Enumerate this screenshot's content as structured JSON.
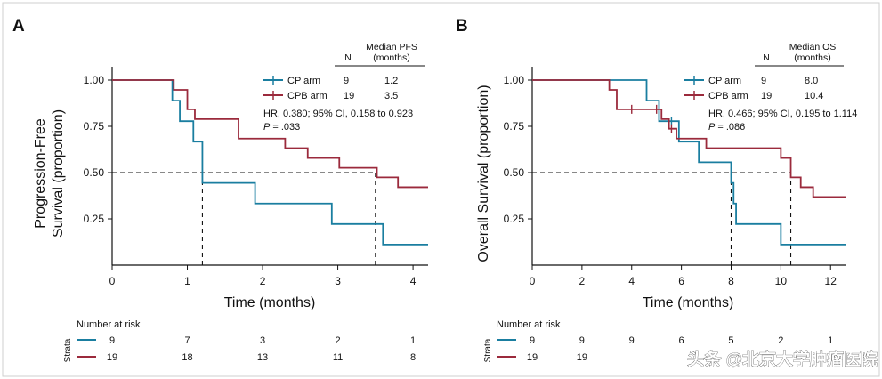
{
  "watermark": "头条 @北京大学肿瘤医院",
  "colors": {
    "cp": "#1a7ea0",
    "cpb": "#9b2a3c",
    "ink": "#111111"
  },
  "chart_data": [
    {
      "type": "line",
      "step": true,
      "panel": "A",
      "ylabel_line1": "Progression-Free",
      "ylabel_line2": "Survival (proportion)",
      "xlabel": "Time (months)",
      "xlim": [
        0,
        4.2
      ],
      "ylim": [
        0,
        1
      ],
      "xticks": [
        0,
        1,
        2,
        3,
        4
      ],
      "yticks": [
        0.25,
        0.5,
        0.75,
        1.0
      ],
      "ytick_labels": [
        "0.25",
        "0.50",
        "0.75",
        "1.00"
      ],
      "legend": {
        "position": "top-right",
        "n_header": "N",
        "median_header_line1": "Median PFS",
        "median_header_line2": "(months)",
        "entries": [
          {
            "name": "CP arm",
            "n": "9",
            "median": "1.2"
          },
          {
            "name": "CPB arm",
            "n": "19",
            "median": "3.5"
          }
        ]
      },
      "hr_text": "HR, 0.380; 95% CI, 0.158 to 0.923",
      "p_label": "P",
      "p_value": " = .033",
      "medians": [
        1.2,
        3.5
      ],
      "series": [
        {
          "name": "CP arm",
          "color": "#1a7ea0",
          "x": [
            0,
            0.8,
            0.9,
            1.08,
            1.2,
            1.9,
            2.92,
            3.6,
            4.2
          ],
          "y": [
            1.0,
            0.889,
            0.778,
            0.667,
            0.444,
            0.333,
            0.222,
            0.111,
            0.111
          ],
          "censor": []
        },
        {
          "name": "CPB arm",
          "color": "#9b2a3c",
          "x": [
            0,
            0.82,
            1.0,
            1.1,
            1.68,
            2.3,
            2.6,
            3.02,
            3.52,
            3.8,
            4.2
          ],
          "y": [
            1.0,
            0.947,
            0.842,
            0.789,
            0.684,
            0.632,
            0.579,
            0.526,
            0.474,
            0.421,
            0.421
          ],
          "censor": []
        }
      ],
      "risk_table": {
        "title": "Number at risk",
        "strata_label": "Strata",
        "times": [
          0,
          1,
          2,
          3,
          4
        ],
        "rows": [
          {
            "name": "CP arm",
            "color": "#1a7ea0",
            "values": [
              "9",
              "7",
              "3",
              "2",
              "1"
            ]
          },
          {
            "name": "CPB arm",
            "color": "#9b2a3c",
            "values": [
              "19",
              "18",
              "13",
              "11",
              "8"
            ]
          }
        ]
      }
    },
    {
      "type": "line",
      "step": true,
      "panel": "B",
      "ylabel_line1": "Overall Survival (proportion)",
      "ylabel_line2": "",
      "xlabel": "Time (months)",
      "xlim": [
        0,
        12.6
      ],
      "ylim": [
        0,
        1
      ],
      "xticks": [
        0,
        2,
        4,
        6,
        8,
        10,
        12
      ],
      "yticks": [
        0.25,
        0.5,
        0.75,
        1.0
      ],
      "ytick_labels": [
        "0.25",
        "0.50",
        "0.75",
        "1.00"
      ],
      "legend": {
        "position": "top-right",
        "n_header": "N",
        "median_header_line1": "Median OS",
        "median_header_line2": "(months)",
        "entries": [
          {
            "name": "CP arm",
            "n": "9",
            "median": "8.0"
          },
          {
            "name": "CPB arm",
            "n": "19",
            "median": "10.4"
          }
        ]
      },
      "hr_text": "HR, 0.466; 95% CI, 0.195 to 1.114",
      "p_label": "P",
      "p_value": " = .086",
      "medians": [
        8.0,
        10.4
      ],
      "series": [
        {
          "name": "CP arm",
          "color": "#1a7ea0",
          "x": [
            0,
            4.6,
            5.1,
            5.9,
            6.7,
            8.0,
            8.1,
            8.2,
            10.0,
            12.6
          ],
          "y": [
            1.0,
            0.889,
            0.778,
            0.667,
            0.556,
            0.444,
            0.333,
            0.222,
            0.111,
            0.111
          ],
          "censor": [
            5.6
          ]
        },
        {
          "name": "CPB arm",
          "color": "#9b2a3c",
          "x": [
            0,
            3.1,
            3.4,
            5.2,
            5.5,
            5.8,
            7.0,
            10.0,
            10.4,
            10.8,
            11.3,
            12.6
          ],
          "y": [
            1.0,
            0.947,
            0.842,
            0.789,
            0.737,
            0.684,
            0.632,
            0.579,
            0.474,
            0.421,
            0.368,
            0.368
          ],
          "censor": [
            4.0,
            5.0,
            5.6
          ]
        }
      ],
      "risk_table": {
        "title": "Number at risk",
        "strata_label": "Strata",
        "times": [
          0,
          2,
          4,
          6,
          8,
          10,
          12
        ],
        "rows": [
          {
            "name": "CP arm",
            "color": "#1a7ea0",
            "values": [
              "9",
              "9",
              "9",
              "6",
              "5",
              "2",
              "1"
            ]
          },
          {
            "name": "CPB arm",
            "color": "#9b2a3c",
            "values": [
              "19",
              "19",
              "",
              "",
              "",
              "",
              ""
            ]
          }
        ]
      }
    }
  ]
}
